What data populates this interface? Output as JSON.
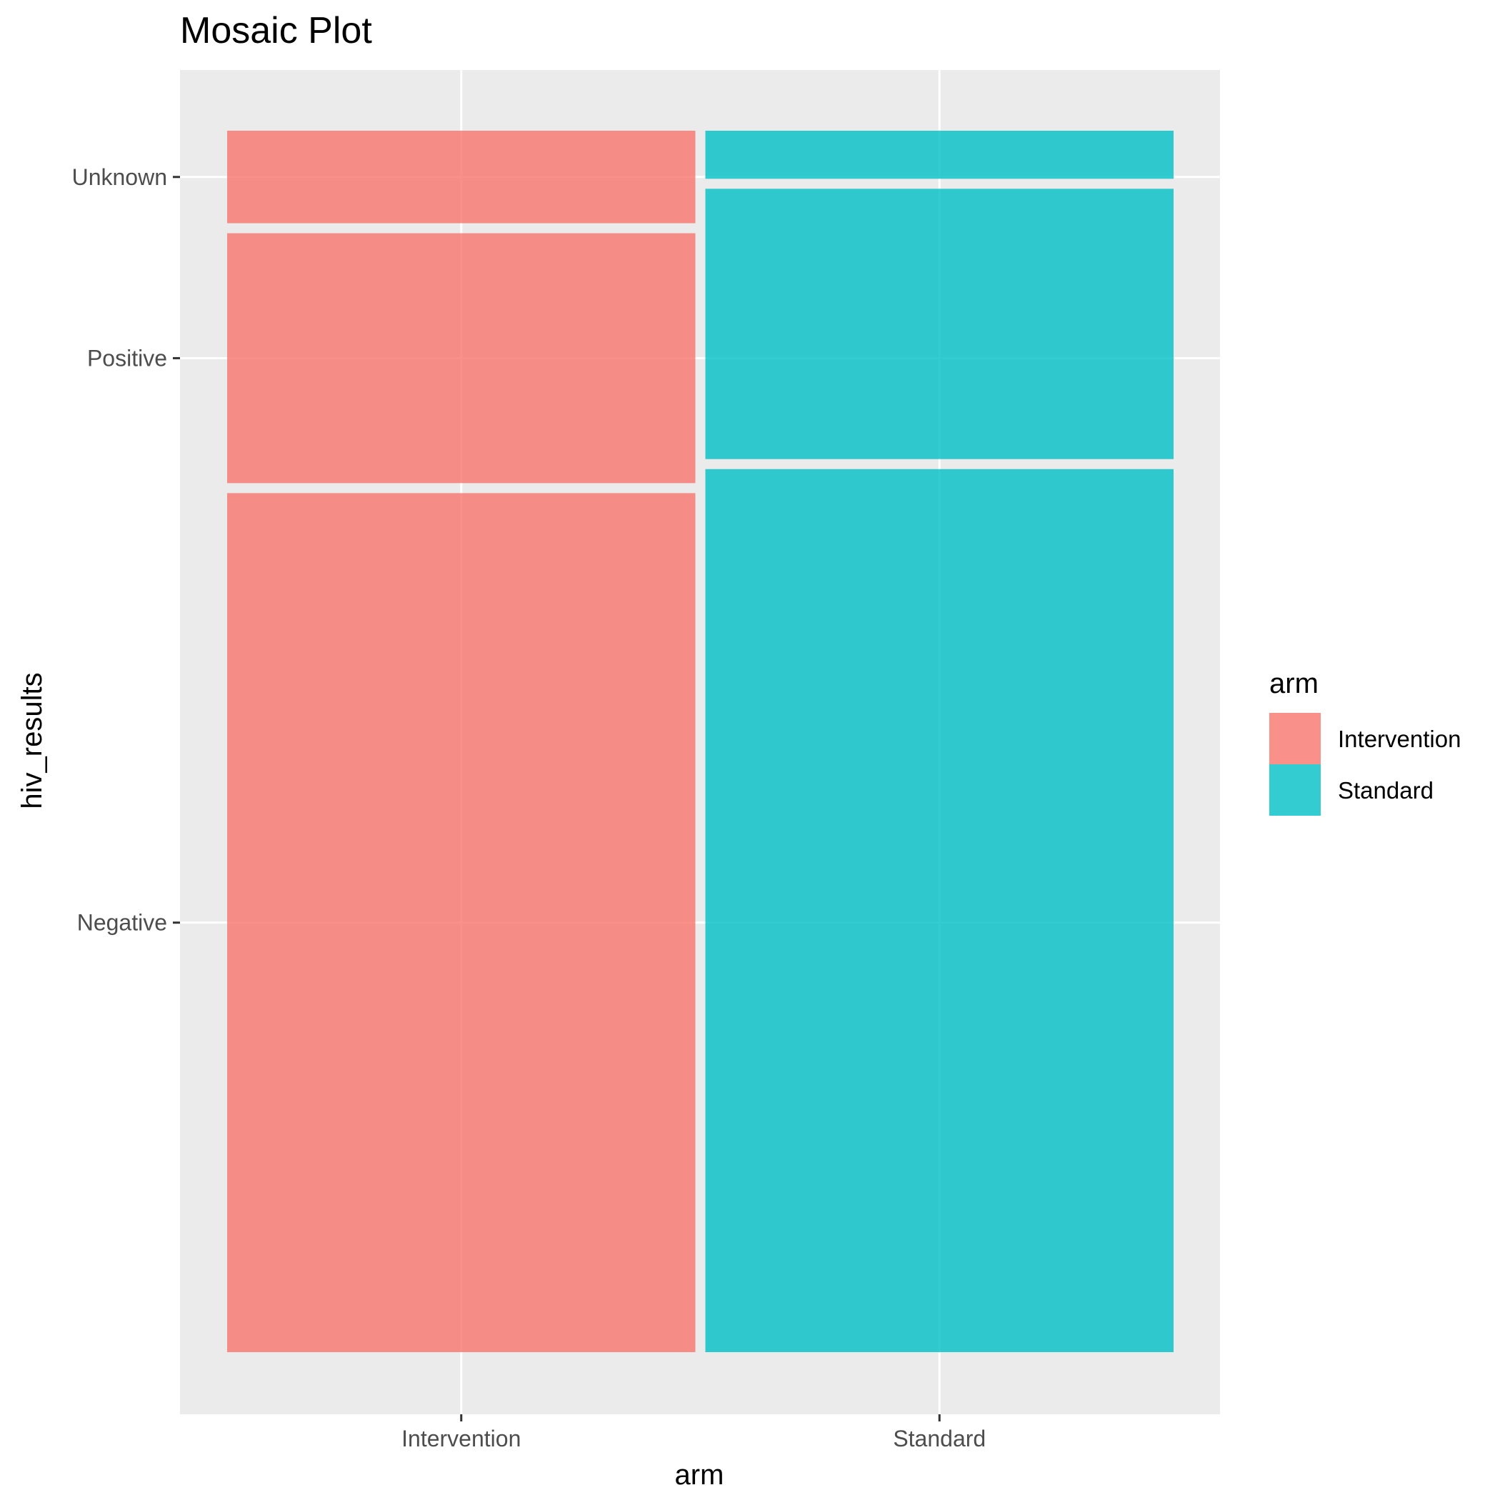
{
  "chart_data": {
    "type": "mosaic",
    "title": "Mosaic Plot",
    "xlabel": "arm",
    "ylabel": "hiv_results",
    "categories": [
      "Intervention",
      "Standard"
    ],
    "x_widths": [
      0.5,
      0.5
    ],
    "y_levels": [
      "Negative",
      "Positive",
      "Unknown"
    ],
    "proportions": [
      {
        "name": "Intervention",
        "values": {
          "Negative": 0.715,
          "Positive": 0.208,
          "Unknown": 0.077
        }
      },
      {
        "name": "Standard",
        "values": {
          "Negative": 0.735,
          "Positive": 0.225,
          "Unknown": 0.04
        }
      }
    ],
    "legend": {
      "title": "arm",
      "position": "right",
      "items": [
        "Intervention",
        "Standard"
      ]
    },
    "colors": {
      "Intervention": "#F8766D",
      "Standard": "#00BFC4"
    },
    "grid": true,
    "panel_background": "#EBEBEB"
  }
}
